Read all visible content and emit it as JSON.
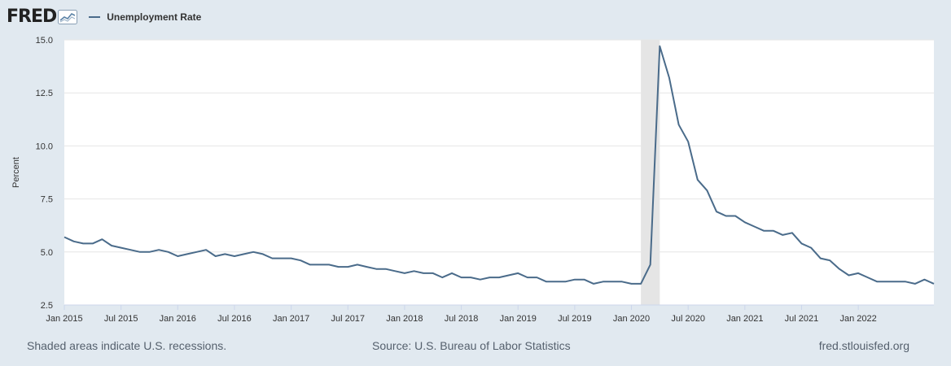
{
  "header": {
    "logo_text": "FRED",
    "logo_icon": "fred-chart-icon",
    "legend_label": "Unemployment Rate",
    "legend_color": "#4a6b8a"
  },
  "footer": {
    "note": "Shaded areas indicate U.S. recessions.",
    "source": "Source: U.S. Bureau of Labor Statistics",
    "site": "fred.stlouisfed.org"
  },
  "chart_data": {
    "type": "line",
    "title": "",
    "ylabel": "Percent",
    "xlabel": "",
    "ylim": [
      2.5,
      15.0
    ],
    "yticks": [
      "2.5",
      "5.0",
      "7.5",
      "10.0",
      "12.5",
      "15.0"
    ],
    "xlim": [
      "2015-01",
      "2022-09"
    ],
    "xticks": [
      {
        "date": "2015-01",
        "label": "Jan 2015"
      },
      {
        "date": "2015-07",
        "label": "Jul 2015"
      },
      {
        "date": "2016-01",
        "label": "Jan 2016"
      },
      {
        "date": "2016-07",
        "label": "Jul 2016"
      },
      {
        "date": "2017-01",
        "label": "Jan 2017"
      },
      {
        "date": "2017-07",
        "label": "Jul 2017"
      },
      {
        "date": "2018-01",
        "label": "Jan 2018"
      },
      {
        "date": "2018-07",
        "label": "Jul 2018"
      },
      {
        "date": "2019-01",
        "label": "Jan 2019"
      },
      {
        "date": "2019-07",
        "label": "Jul 2019"
      },
      {
        "date": "2020-01",
        "label": "Jan 2020"
      },
      {
        "date": "2020-07",
        "label": "Jul 2020"
      },
      {
        "date": "2021-01",
        "label": "Jan 2021"
      },
      {
        "date": "2021-07",
        "label": "Jul 2021"
      },
      {
        "date": "2022-01",
        "label": "Jan 2022"
      }
    ],
    "grid": true,
    "recession": {
      "start": "2020-02",
      "end": "2020-04",
      "color": "#e5e5e5"
    },
    "series": [
      {
        "name": "Unemployment Rate",
        "color": "#4a6b8a",
        "x": [
          "2015-01",
          "2015-02",
          "2015-03",
          "2015-04",
          "2015-05",
          "2015-06",
          "2015-07",
          "2015-08",
          "2015-09",
          "2015-10",
          "2015-11",
          "2015-12",
          "2016-01",
          "2016-02",
          "2016-03",
          "2016-04",
          "2016-05",
          "2016-06",
          "2016-07",
          "2016-08",
          "2016-09",
          "2016-10",
          "2016-11",
          "2016-12",
          "2017-01",
          "2017-02",
          "2017-03",
          "2017-04",
          "2017-05",
          "2017-06",
          "2017-07",
          "2017-08",
          "2017-09",
          "2017-10",
          "2017-11",
          "2017-12",
          "2018-01",
          "2018-02",
          "2018-03",
          "2018-04",
          "2018-05",
          "2018-06",
          "2018-07",
          "2018-08",
          "2018-09",
          "2018-10",
          "2018-11",
          "2018-12",
          "2019-01",
          "2019-02",
          "2019-03",
          "2019-04",
          "2019-05",
          "2019-06",
          "2019-07",
          "2019-08",
          "2019-09",
          "2019-10",
          "2019-11",
          "2019-12",
          "2020-01",
          "2020-02",
          "2020-03",
          "2020-04",
          "2020-05",
          "2020-06",
          "2020-07",
          "2020-08",
          "2020-09",
          "2020-10",
          "2020-11",
          "2020-12",
          "2021-01",
          "2021-02",
          "2021-03",
          "2021-04",
          "2021-05",
          "2021-06",
          "2021-07",
          "2021-08",
          "2021-09",
          "2021-10",
          "2021-11",
          "2021-12",
          "2022-01",
          "2022-02",
          "2022-03",
          "2022-04",
          "2022-05",
          "2022-06",
          "2022-07",
          "2022-08",
          "2022-09"
        ],
        "y": [
          5.7,
          5.5,
          5.4,
          5.4,
          5.6,
          5.3,
          5.2,
          5.1,
          5.0,
          5.0,
          5.1,
          5.0,
          4.8,
          4.9,
          5.0,
          5.1,
          4.8,
          4.9,
          4.8,
          4.9,
          5.0,
          4.9,
          4.7,
          4.7,
          4.7,
          4.6,
          4.4,
          4.4,
          4.4,
          4.3,
          4.3,
          4.4,
          4.3,
          4.2,
          4.2,
          4.1,
          4.0,
          4.1,
          4.0,
          4.0,
          3.8,
          4.0,
          3.8,
          3.8,
          3.7,
          3.8,
          3.8,
          3.9,
          4.0,
          3.8,
          3.8,
          3.6,
          3.6,
          3.6,
          3.7,
          3.7,
          3.5,
          3.6,
          3.6,
          3.6,
          3.5,
          3.5,
          4.4,
          14.7,
          13.2,
          11.0,
          10.2,
          8.4,
          7.9,
          6.9,
          6.7,
          6.7,
          6.4,
          6.2,
          6.0,
          6.0,
          5.8,
          5.9,
          5.4,
          5.2,
          4.7,
          4.6,
          4.2,
          3.9,
          4.0,
          3.8,
          3.6,
          3.6,
          3.6,
          3.6,
          3.5,
          3.7,
          3.5
        ]
      }
    ]
  }
}
